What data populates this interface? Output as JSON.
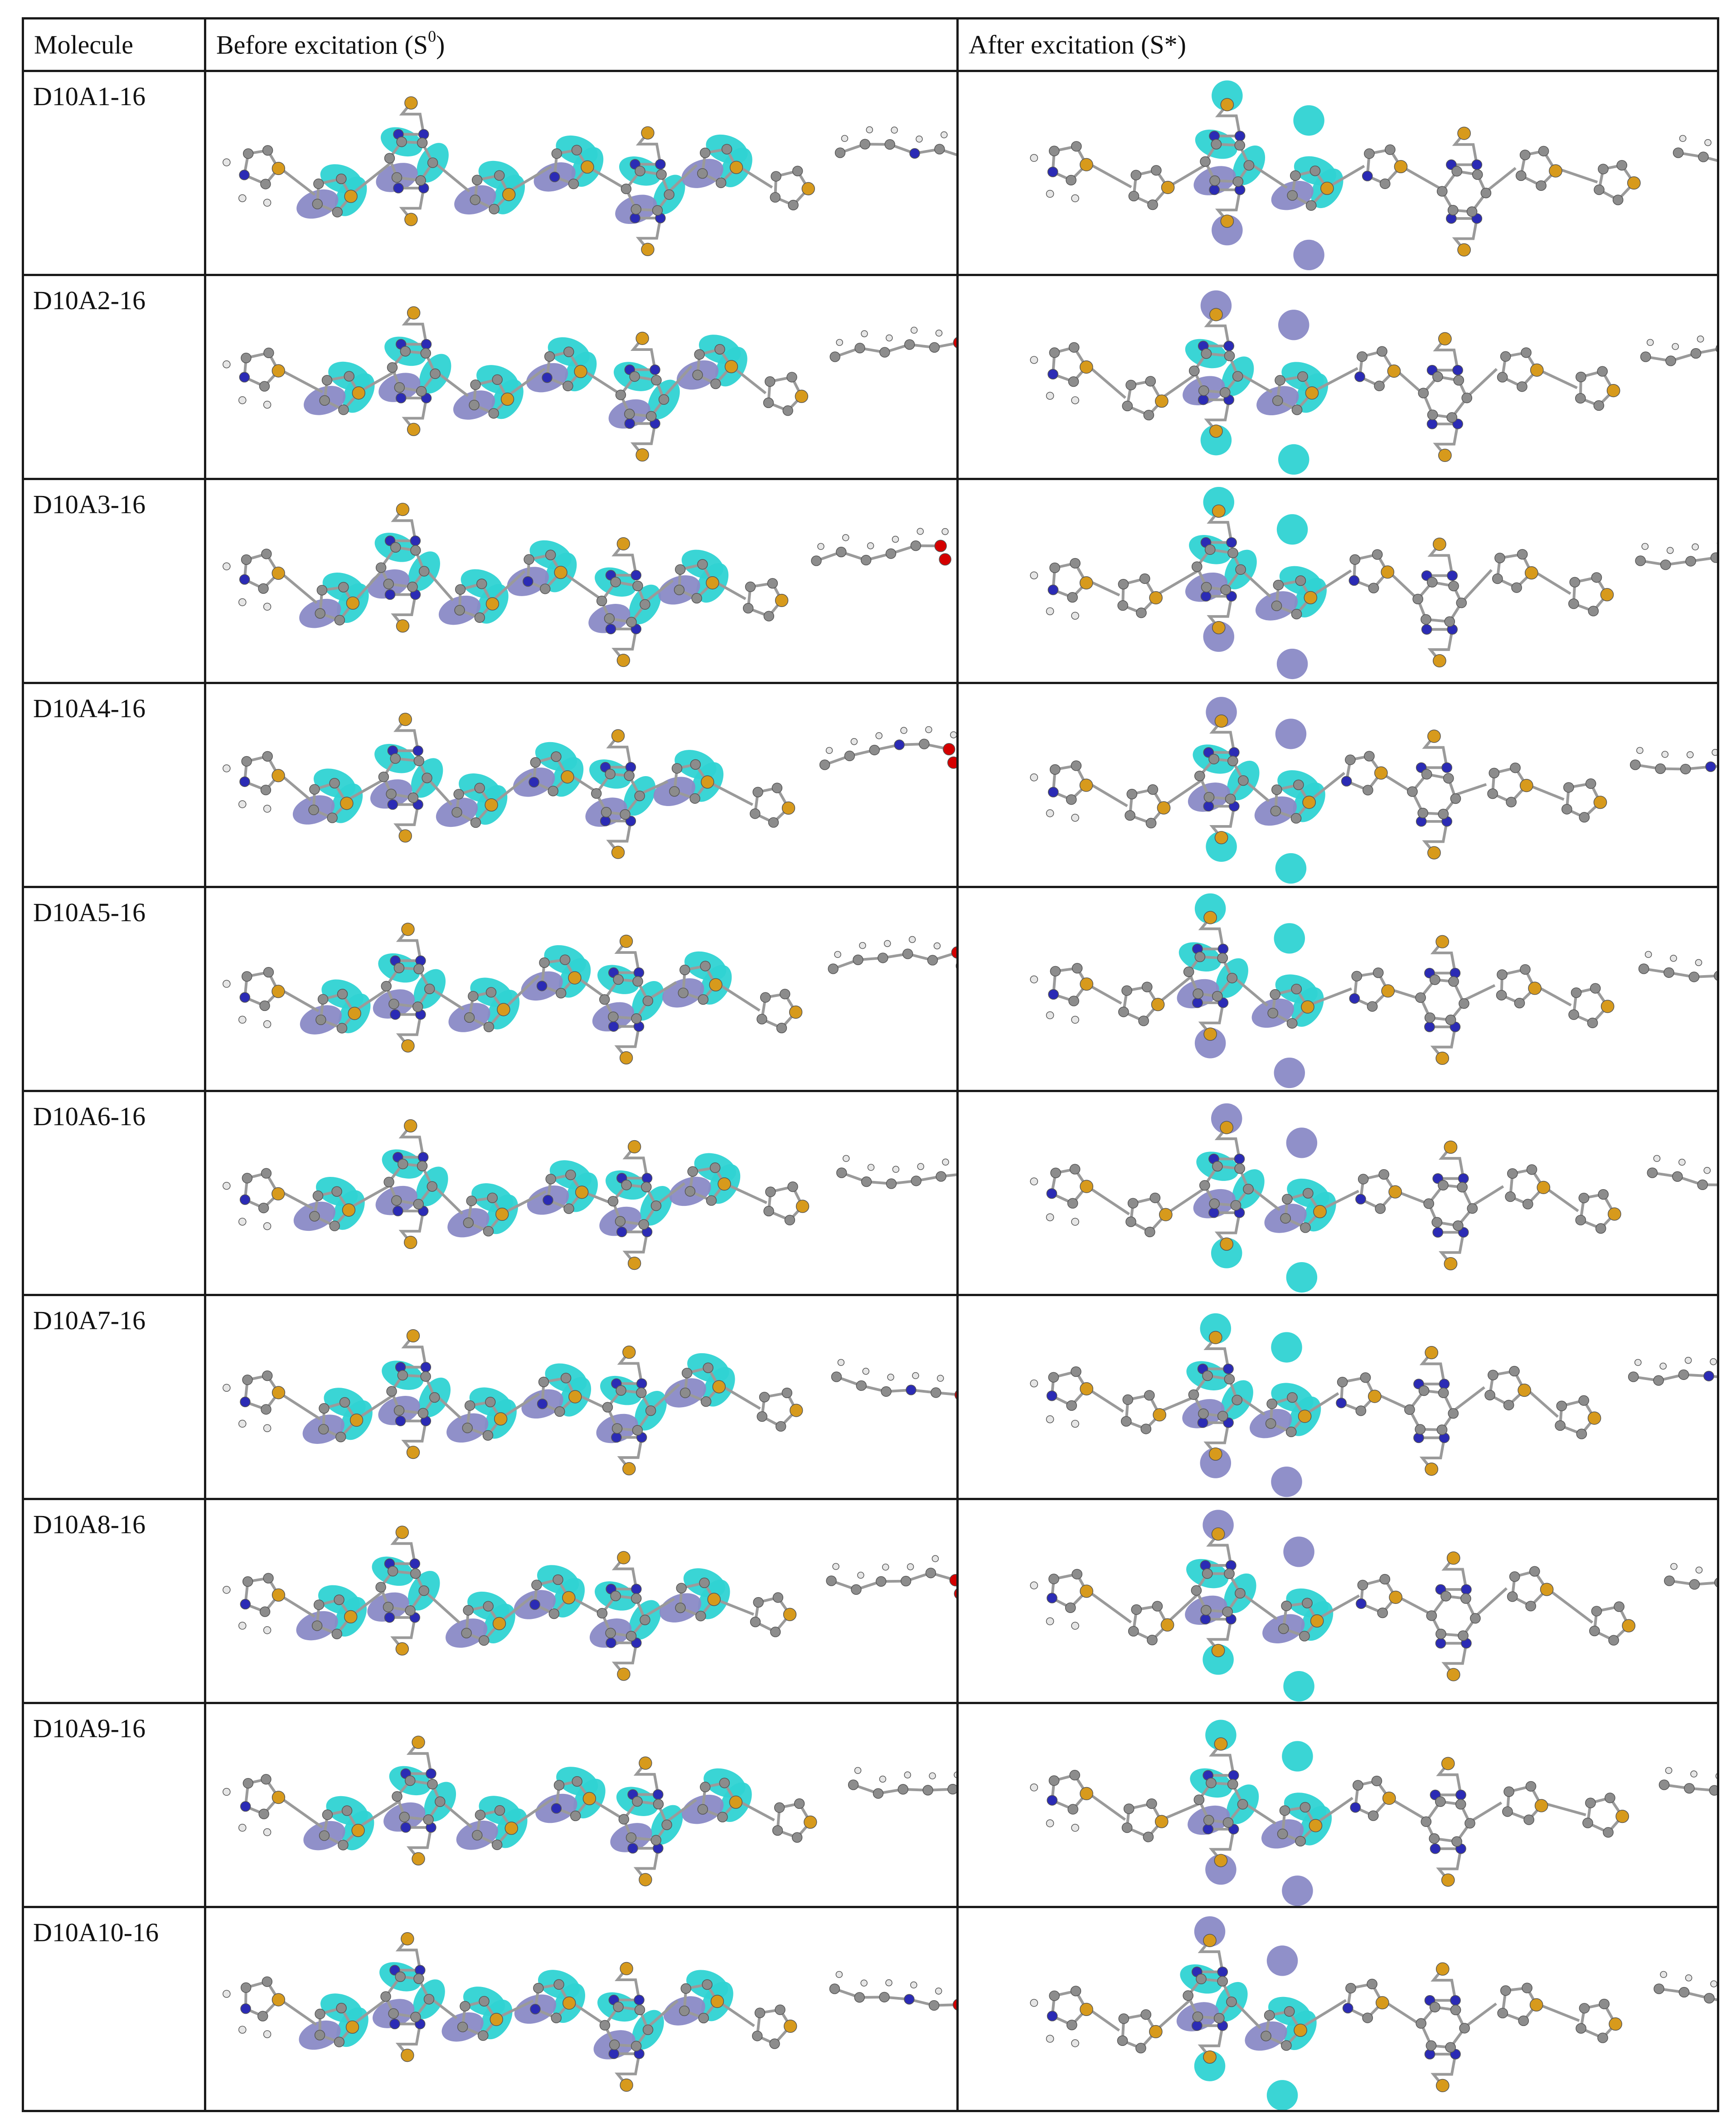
{
  "table": {
    "headers": {
      "molecule": "Molecule",
      "before_prefix": "Before excitation (S",
      "before_sup": "0",
      "before_suffix": ")",
      "after": "After excitation (S*)"
    },
    "rows": [
      {
        "name": "D10A1-16"
      },
      {
        "name": "D10A2-16"
      },
      {
        "name": "D10A3-16"
      },
      {
        "name": "D10A4-16"
      },
      {
        "name": "D10A5-16"
      },
      {
        "name": "D10A6-16"
      },
      {
        "name": "D10A7-16"
      },
      {
        "name": "D10A8-16"
      },
      {
        "name": "D10A9-16"
      },
      {
        "name": "D10A10-16"
      }
    ]
  },
  "colors": {
    "border": "#1a1a1a",
    "orbital_positive": "#2fd3d3",
    "orbital_negative": "#8a8ac6",
    "carbon": "#8c8c8c",
    "sulfur": "#d79a1c",
    "nitrogen": "#2b2bb5",
    "oxygen": "#d40000",
    "hydrogen": "#e6e6e6",
    "fluorine": "#8fd6d6"
  },
  "molecule_images": {
    "before_label": "HOMO orbital isosurface (S0) molecular model",
    "after_label": "LUMO orbital isosurface (S*) molecular model"
  }
}
